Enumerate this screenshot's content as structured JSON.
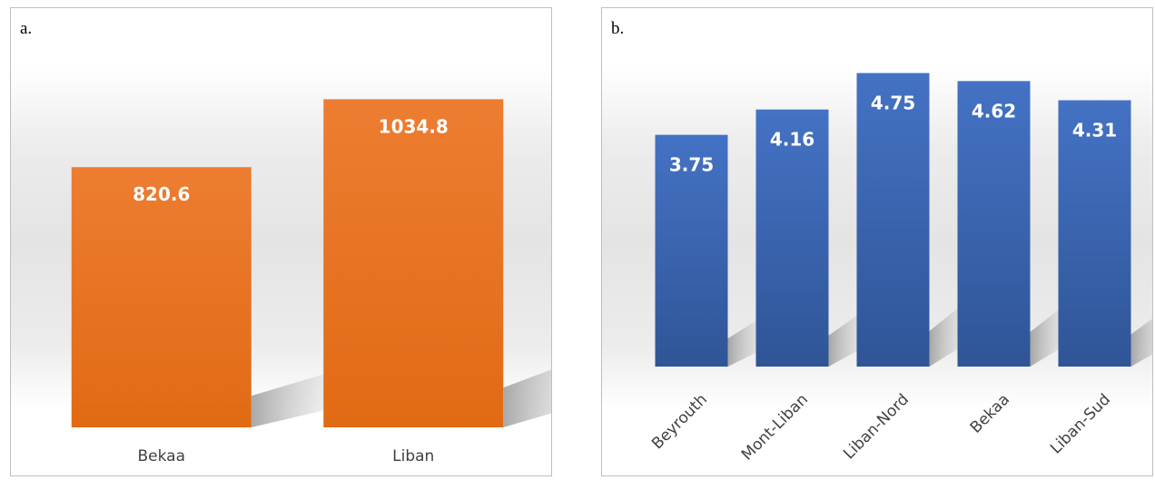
{
  "chart_data": [
    {
      "type": "bar",
      "panel_label": "a.",
      "categories": [
        "Bekaa",
        "Liban"
      ],
      "values": [
        820.6,
        1034.8
      ],
      "value_labels": [
        "820.6",
        "1034.8"
      ],
      "ylim": [
        0,
        1322
      ],
      "bar_color": "#ED7D31",
      "bar_color_dark": "#E16A14",
      "data_label_color": "#FFFFFF"
    },
    {
      "type": "bar",
      "panel_label": "b.",
      "categories": [
        "Beyrouth",
        "Mont-Liban",
        "Liban-Nord",
        "Bekaa",
        "Liban-Sud"
      ],
      "values": [
        3.75,
        4.16,
        4.75,
        4.62,
        4.31
      ],
      "value_labels": [
        "3.75",
        "4.16",
        "4.75",
        "4.62",
        "4.31"
      ],
      "ylim": [
        0,
        5.8
      ],
      "bar_color": "#4472C4",
      "bar_color_dark": "#2F5597",
      "data_label_color": "#FFFFFF"
    }
  ]
}
